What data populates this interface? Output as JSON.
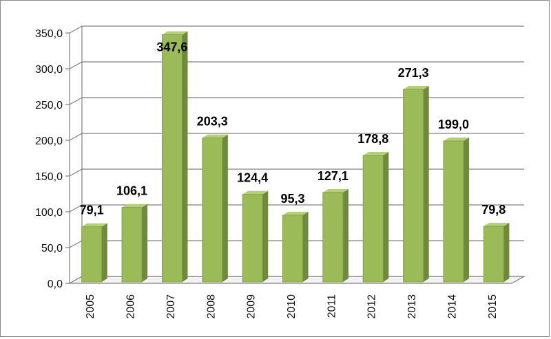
{
  "chart_data": {
    "type": "bar",
    "categories": [
      "2005",
      "2006",
      "2007",
      "2008",
      "2009",
      "2010",
      "2011",
      "2012",
      "2013",
      "2014",
      "2015"
    ],
    "values": [
      79.1,
      106.1,
      347.6,
      203.3,
      124.4,
      95.3,
      127.1,
      178.8,
      271.3,
      199.0,
      79.8
    ],
    "value_labels": [
      "79,1",
      "106,1",
      "347,6",
      "203,3",
      "124,4",
      "95,3",
      "127,1",
      "178,8",
      "271,3",
      "199,0",
      "79,8"
    ],
    "yticks": [
      "0,0",
      "50,0",
      "100,0",
      "150,0",
      "200,0",
      "250,0",
      "300,0",
      "350,0"
    ],
    "ylim": [
      0,
      350
    ],
    "grid": true,
    "legend": "none",
    "title": "",
    "xlabel": "",
    "ylabel": "",
    "colors": {
      "bar_front": "#9bbb59",
      "bar_side": "#6f8a3c",
      "bar_top": "#b5cf7a",
      "grid": "#7f7f7f",
      "wall": "#a6a6a6"
    }
  }
}
